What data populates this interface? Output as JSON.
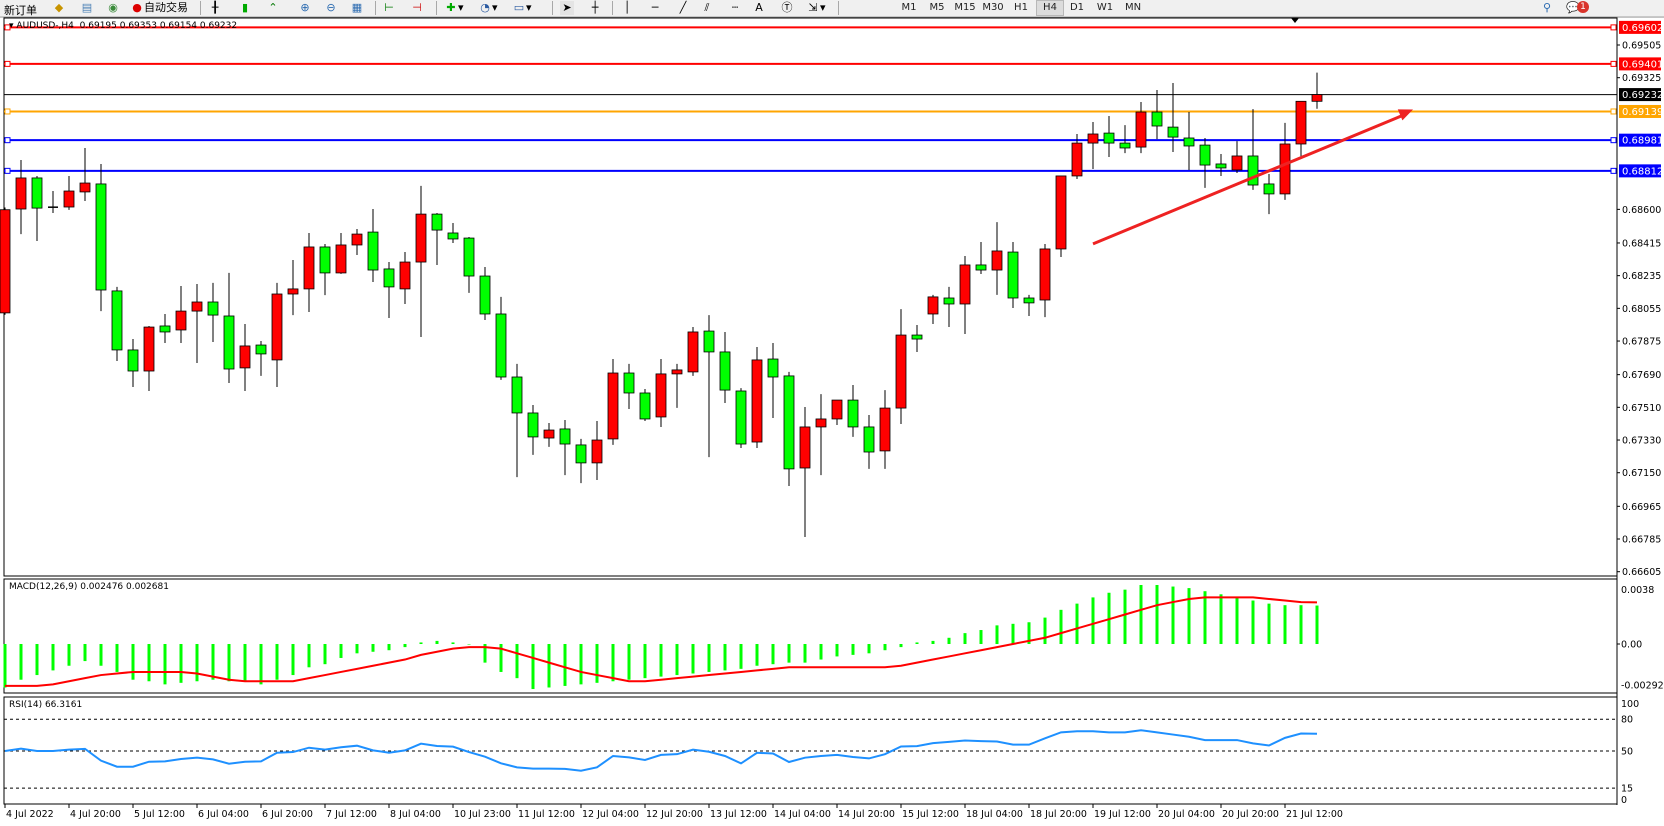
{
  "toolbar": {
    "new_order_label": "新订单",
    "auto_trading_label": "自动交易",
    "timeframes": [
      "M1",
      "M5",
      "M15",
      "M30",
      "H1",
      "H4",
      "D1",
      "W1",
      "MN"
    ],
    "active_timeframe": "H4",
    "notification_count": "1",
    "icons": [
      "new-order-icon",
      "market-watch-icon",
      "data-window-icon",
      "signals-icon",
      "auto-trading-icon",
      "bar-chart-icon",
      "candlestick-icon",
      "line-chart-icon",
      "zoom-in-icon",
      "zoom-out-icon",
      "tile-windows-icon",
      "scroll-icon",
      "chart-shift-icon",
      "indicators-icon",
      "periods-icon",
      "templates-icon",
      "cursor-icon",
      "crosshair-icon",
      "vertical-line-icon",
      "horizontal-line-icon",
      "trendline-icon",
      "equidistant-channel-icon",
      "fibonacci-icon",
      "text-icon",
      "text-label-icon",
      "arrows-icon",
      "search-icon",
      "notification-icon"
    ]
  },
  "chart_header": {
    "symbol": "AUDUSD-,H4",
    "ohlc": "0.69195 0.69353 0.69154 0.69232"
  },
  "macd_header": "MACD(12,26,9) 0.002476 0.002681",
  "rsi_header": "RSI(14) 66.3161",
  "colors": {
    "up_candle": "#ff0000",
    "down_candle": "#00ff00",
    "macd_histogram": "#00ff00",
    "macd_signal": "#ff0000",
    "rsi_line": "#1e90ff",
    "trend_arrow": "#ee2222"
  },
  "chart_data": [
    {
      "type": "candlestick",
      "title": "AUDUSD-,H4",
      "ylim": [
        0.66605,
        0.69602
      ],
      "y_ticks": [
        "0.69505",
        "0.69325",
        "0.68600",
        "0.68415",
        "0.68235",
        "0.68055",
        "0.67875",
        "0.67690",
        "0.67510",
        "0.67330",
        "0.67150",
        "0.66965",
        "0.66785",
        "0.66605"
      ],
      "x_tick_labels": [
        "4 Jul 2022",
        "4 Jul 20:00",
        "5 Jul 12:00",
        "6 Jul 04:00",
        "6 Jul 20:00",
        "7 Jul 12:00",
        "8 Jul 04:00",
        "10 Jul 23:00",
        "11 Jul 12:00",
        "12 Jul 04:00",
        "12 Jul 20:00",
        "13 Jul 12:00",
        "14 Jul 04:00",
        "14 Jul 20:00",
        "15 Jul 12:00",
        "18 Jul 04:00",
        "18 Jul 20:00",
        "19 Jul 12:00",
        "20 Jul 04:00",
        "20 Jul 20:00",
        "21 Jul 12:00"
      ],
      "ohlc_fields": [
        "open",
        "high",
        "low",
        "close"
      ],
      "candles": [
        [
          0.6803,
          0.6861,
          0.6802,
          0.68598
        ],
        [
          0.68602,
          0.68872,
          0.68464,
          0.68773
        ],
        [
          0.68773,
          0.68784,
          0.68426,
          0.68607
        ],
        [
          0.68612,
          0.68701,
          0.6858,
          0.68612
        ],
        [
          0.68613,
          0.68784,
          0.68597,
          0.68701
        ],
        [
          0.68696,
          0.68938,
          0.68646,
          0.68745
        ],
        [
          0.6874,
          0.6885,
          0.6804,
          0.68156
        ],
        [
          0.68151,
          0.68173,
          0.67765,
          0.67826
        ],
        [
          0.67826,
          0.67886,
          0.67622,
          0.6771
        ],
        [
          0.6771,
          0.67958,
          0.676,
          0.67952
        ],
        [
          0.67958,
          0.68024,
          0.67864,
          0.67925
        ],
        [
          0.67936,
          0.68178,
          0.67864,
          0.6804
        ],
        [
          0.6804,
          0.68189,
          0.67754,
          0.6809
        ],
        [
          0.6809,
          0.68195,
          0.6787,
          0.68018
        ],
        [
          0.68013,
          0.6825,
          0.67644,
          0.67721
        ],
        [
          0.67727,
          0.67969,
          0.676,
          0.67848
        ],
        [
          0.67853,
          0.67875,
          0.67683,
          0.67804
        ],
        [
          0.67771,
          0.68195,
          0.67622,
          0.68134
        ],
        [
          0.68134,
          0.68321,
          0.68018,
          0.68162
        ],
        [
          0.68162,
          0.6847,
          0.68035,
          0.68393
        ],
        [
          0.68393,
          0.68409,
          0.68128,
          0.6825
        ],
        [
          0.6825,
          0.6847,
          0.68245,
          0.68404
        ],
        [
          0.68404,
          0.68492,
          0.68349,
          0.68464
        ],
        [
          0.68475,
          0.68602,
          0.682,
          0.68266
        ],
        [
          0.68272,
          0.6831,
          0.68002,
          0.68173
        ],
        [
          0.68162,
          0.68365,
          0.68079,
          0.6831
        ],
        [
          0.6831,
          0.68729,
          0.67897,
          0.68574
        ],
        [
          0.68574,
          0.6858,
          0.68294,
          0.68486
        ],
        [
          0.6847,
          0.68525,
          0.68415,
          0.68437
        ],
        [
          0.68442,
          0.68448,
          0.6814,
          0.68233
        ],
        [
          0.68233,
          0.68283,
          0.67991,
          0.68024
        ],
        [
          0.68024,
          0.68118,
          0.67661,
          0.67677
        ],
        [
          0.67677,
          0.67749,
          0.67126,
          0.67479
        ],
        [
          0.67479,
          0.67523,
          0.67248,
          0.67347
        ],
        [
          0.67341,
          0.67424,
          0.67292,
          0.67385
        ],
        [
          0.67391,
          0.6744,
          0.67137,
          0.67308
        ],
        [
          0.67303,
          0.67336,
          0.67093,
          0.67204
        ],
        [
          0.67204,
          0.67435,
          0.6711,
          0.6733
        ],
        [
          0.67336,
          0.67776,
          0.67303,
          0.67699
        ],
        [
          0.67699,
          0.67749,
          0.67501,
          0.67589
        ],
        [
          0.67589,
          0.67611,
          0.67435,
          0.67446
        ],
        [
          0.67457,
          0.67776,
          0.67402,
          0.67694
        ],
        [
          0.67694,
          0.67749,
          0.67507,
          0.67716
        ],
        [
          0.67705,
          0.67952,
          0.67683,
          0.67925
        ],
        [
          0.6793,
          0.68018,
          0.67236,
          0.67815
        ],
        [
          0.67815,
          0.67925,
          0.67534,
          0.67605
        ],
        [
          0.676,
          0.67616,
          0.67286,
          0.67308
        ],
        [
          0.67319,
          0.67842,
          0.67286,
          0.67771
        ],
        [
          0.67776,
          0.67864,
          0.67451,
          0.67677
        ],
        [
          0.67683,
          0.67705,
          0.67077,
          0.67171
        ],
        [
          0.67176,
          0.67512,
          0.66796,
          0.67402
        ],
        [
          0.67402,
          0.67583,
          0.67137,
          0.67446
        ],
        [
          0.67446,
          0.6755,
          0.67413,
          0.6755
        ],
        [
          0.6755,
          0.67633,
          0.67347,
          0.67402
        ],
        [
          0.67402,
          0.67468,
          0.67171,
          0.67264
        ],
        [
          0.6727,
          0.67605,
          0.67171,
          0.67506
        ],
        [
          0.67506,
          0.68051,
          0.67418,
          0.67908
        ],
        [
          0.67908,
          0.67963,
          0.67815,
          0.67886
        ],
        [
          0.68024,
          0.68129,
          0.67969,
          0.68118
        ],
        [
          0.68112,
          0.68173,
          0.67952,
          0.68079
        ],
        [
          0.68079,
          0.68343,
          0.67914,
          0.68294
        ],
        [
          0.68294,
          0.6842,
          0.68244,
          0.68266
        ],
        [
          0.68266,
          0.6853,
          0.68129,
          0.68371
        ],
        [
          0.68365,
          0.6842,
          0.68057,
          0.68112
        ],
        [
          0.68112,
          0.68129,
          0.68013,
          0.68085
        ],
        [
          0.68101,
          0.68409,
          0.68007,
          0.68382
        ],
        [
          0.68382,
          0.68784,
          0.68338,
          0.68784
        ],
        [
          0.68784,
          0.69015,
          0.68767,
          0.68965
        ],
        [
          0.68965,
          0.69081,
          0.68822,
          0.69015
        ],
        [
          0.6902,
          0.69114,
          0.68888,
          0.68965
        ],
        [
          0.68965,
          0.69064,
          0.6891,
          0.68938
        ],
        [
          0.68943,
          0.69191,
          0.6891,
          0.69136
        ],
        [
          0.69136,
          0.69257,
          0.68987,
          0.69059
        ],
        [
          0.69053,
          0.69296,
          0.68916,
          0.68998
        ],
        [
          0.68993,
          0.69136,
          0.68817,
          0.68949
        ],
        [
          0.68954,
          0.68993,
          0.68718,
          0.68844
        ],
        [
          0.6885,
          0.68905,
          0.68784,
          0.68828
        ],
        [
          0.68817,
          0.68976,
          0.688,
          0.68894
        ],
        [
          0.68894,
          0.69152,
          0.68707,
          0.68734
        ],
        [
          0.6874,
          0.68795,
          0.68574,
          0.68685
        ],
        [
          0.68685,
          0.69076,
          0.68652,
          0.6896
        ],
        [
          0.6896,
          0.69195,
          0.68883,
          0.69195
        ],
        [
          0.69195,
          0.69353,
          0.69154,
          0.69232
        ]
      ],
      "horizontal_lines": [
        {
          "price": "0.69602",
          "color": "#ff0000"
        },
        {
          "price": "0.69401",
          "color": "#ff0000"
        },
        {
          "price": "0.69232",
          "color": "#000000"
        },
        {
          "price": "0.69139",
          "color": "#ffa500"
        },
        {
          "price": "0.68981",
          "color": "#0000ff"
        },
        {
          "price": "0.68812",
          "color": "#0000ff"
        }
      ],
      "annotation": {
        "type": "arrow",
        "from": {
          "candle": 68,
          "price": 0.6841
        },
        "to": {
          "candle": 83,
          "price": 0.6915
        }
      }
    },
    {
      "type": "bar+line",
      "title": "MACD(12,26,9) 0.002476 0.002681",
      "ylim": [
        -0.002925,
        0.0038
      ],
      "y_ticks": [
        "0.0038",
        "0.00",
        "-0.002925"
      ],
      "series": [
        {
          "name": "MACD",
          "type": "bar",
          "values": [
            -0.0028,
            -0.0023,
            -0.002,
            -0.0017,
            -0.0014,
            -0.0011,
            -0.0014,
            -0.0018,
            -0.0023,
            -0.0024,
            -0.0026,
            -0.0025,
            -0.0024,
            -0.0023,
            -0.0024,
            -0.0024,
            -0.0026,
            -0.0023,
            -0.002,
            -0.0015,
            -0.0013,
            -0.0009,
            -0.0006,
            -0.0005,
            -0.0004,
            -0.0002,
            0.0001,
            0.0002,
            0.0001,
            0.0,
            -0.0012,
            -0.0018,
            -0.0022,
            -0.0029,
            -0.0028,
            -0.0027,
            -0.0026,
            -0.0025,
            -0.0024,
            -0.0023,
            -0.0022,
            -0.0021,
            -0.002,
            -0.0019,
            -0.0018,
            -0.0017,
            -0.0016,
            -0.0014,
            -0.0013,
            -0.0012,
            -0.0012,
            -0.001,
            -0.0008,
            -0.0007,
            -0.0006,
            -0.0004,
            -0.0002,
            0.0001,
            0.0002,
            0.0004,
            0.0007,
            0.0009,
            0.0012,
            0.0013,
            0.0014,
            0.0017,
            0.0022,
            0.0026,
            0.003,
            0.0033,
            0.0035,
            0.0038,
            0.0038,
            0.0037,
            0.0036,
            0.0034,
            0.0032,
            0.003,
            0.0028,
            0.0026,
            0.0025,
            0.0025,
            0.002476
          ]
        },
        {
          "name": "Signal",
          "type": "line",
          "values": [
            -0.0027,
            -0.0027,
            -0.0027,
            -0.0026,
            -0.0024,
            -0.0022,
            -0.002,
            -0.0019,
            -0.0018,
            -0.0018,
            -0.0018,
            -0.0018,
            -0.0019,
            -0.0021,
            -0.0023,
            -0.0024,
            -0.0024,
            -0.0024,
            -0.0024,
            -0.0022,
            -0.002,
            -0.0018,
            -0.0016,
            -0.0014,
            -0.0012,
            -0.001,
            -0.0007,
            -0.0005,
            -0.0003,
            -0.0002,
            -0.0002,
            -0.0003,
            -0.0006,
            -0.0009,
            -0.0012,
            -0.0015,
            -0.0018,
            -0.002,
            -0.0022,
            -0.0024,
            -0.0024,
            -0.0023,
            -0.0022,
            -0.0021,
            -0.002,
            -0.0019,
            -0.0018,
            -0.0017,
            -0.0016,
            -0.0015,
            -0.0015,
            -0.0015,
            -0.0015,
            -0.0015,
            -0.0015,
            -0.0015,
            -0.0014,
            -0.0012,
            -0.001,
            -0.0008,
            -0.0006,
            -0.0004,
            -0.0002,
            0.0,
            0.0002,
            0.0004,
            0.0007,
            0.001,
            0.0013,
            0.0016,
            0.0019,
            0.0022,
            0.0025,
            0.0027,
            0.0029,
            0.003,
            0.003,
            0.003,
            0.003,
            0.0029,
            0.0028,
            0.0027,
            0.002681
          ]
        }
      ]
    },
    {
      "type": "line",
      "title": "RSI(14) 66.3161",
      "ylim": [
        0,
        100
      ],
      "y_ticks": [
        "100",
        "80",
        "50",
        "15",
        "0"
      ],
      "levels": [
        80,
        50,
        15
      ],
      "series": [
        {
          "name": "RSI(14)",
          "values": [
            50.0,
            52.2,
            50.0,
            50.0,
            51.3,
            52.0,
            40.9,
            35.2,
            35.2,
            39.9,
            40.2,
            42.5,
            43.7,
            42.1,
            38.0,
            39.9,
            40.2,
            48.4,
            49.0,
            53.1,
            51.3,
            53.5,
            55.0,
            50.6,
            48.4,
            50.6,
            56.9,
            54.7,
            54.1,
            49.0,
            44.6,
            38.4,
            34.6,
            33.4,
            33.4,
            33.1,
            31.4,
            34.6,
            45.3,
            44.0,
            41.5,
            46.3,
            47.0,
            51.3,
            49.3,
            45.3,
            38.3,
            48.3,
            47.6,
            39.6,
            43.7,
            45.3,
            46.3,
            44.3,
            43.0,
            47.0,
            54.3,
            54.6,
            57.4,
            58.6,
            59.9,
            59.3,
            59.0,
            56.0,
            56.0,
            62.0,
            67.6,
            68.6,
            68.6,
            67.6,
            67.6,
            69.6,
            67.6,
            65.5,
            63.4,
            60.3,
            60.3,
            60.3,
            57.2,
            55.2,
            62.4,
            66.5,
            66.3161
          ]
        }
      ]
    }
  ]
}
